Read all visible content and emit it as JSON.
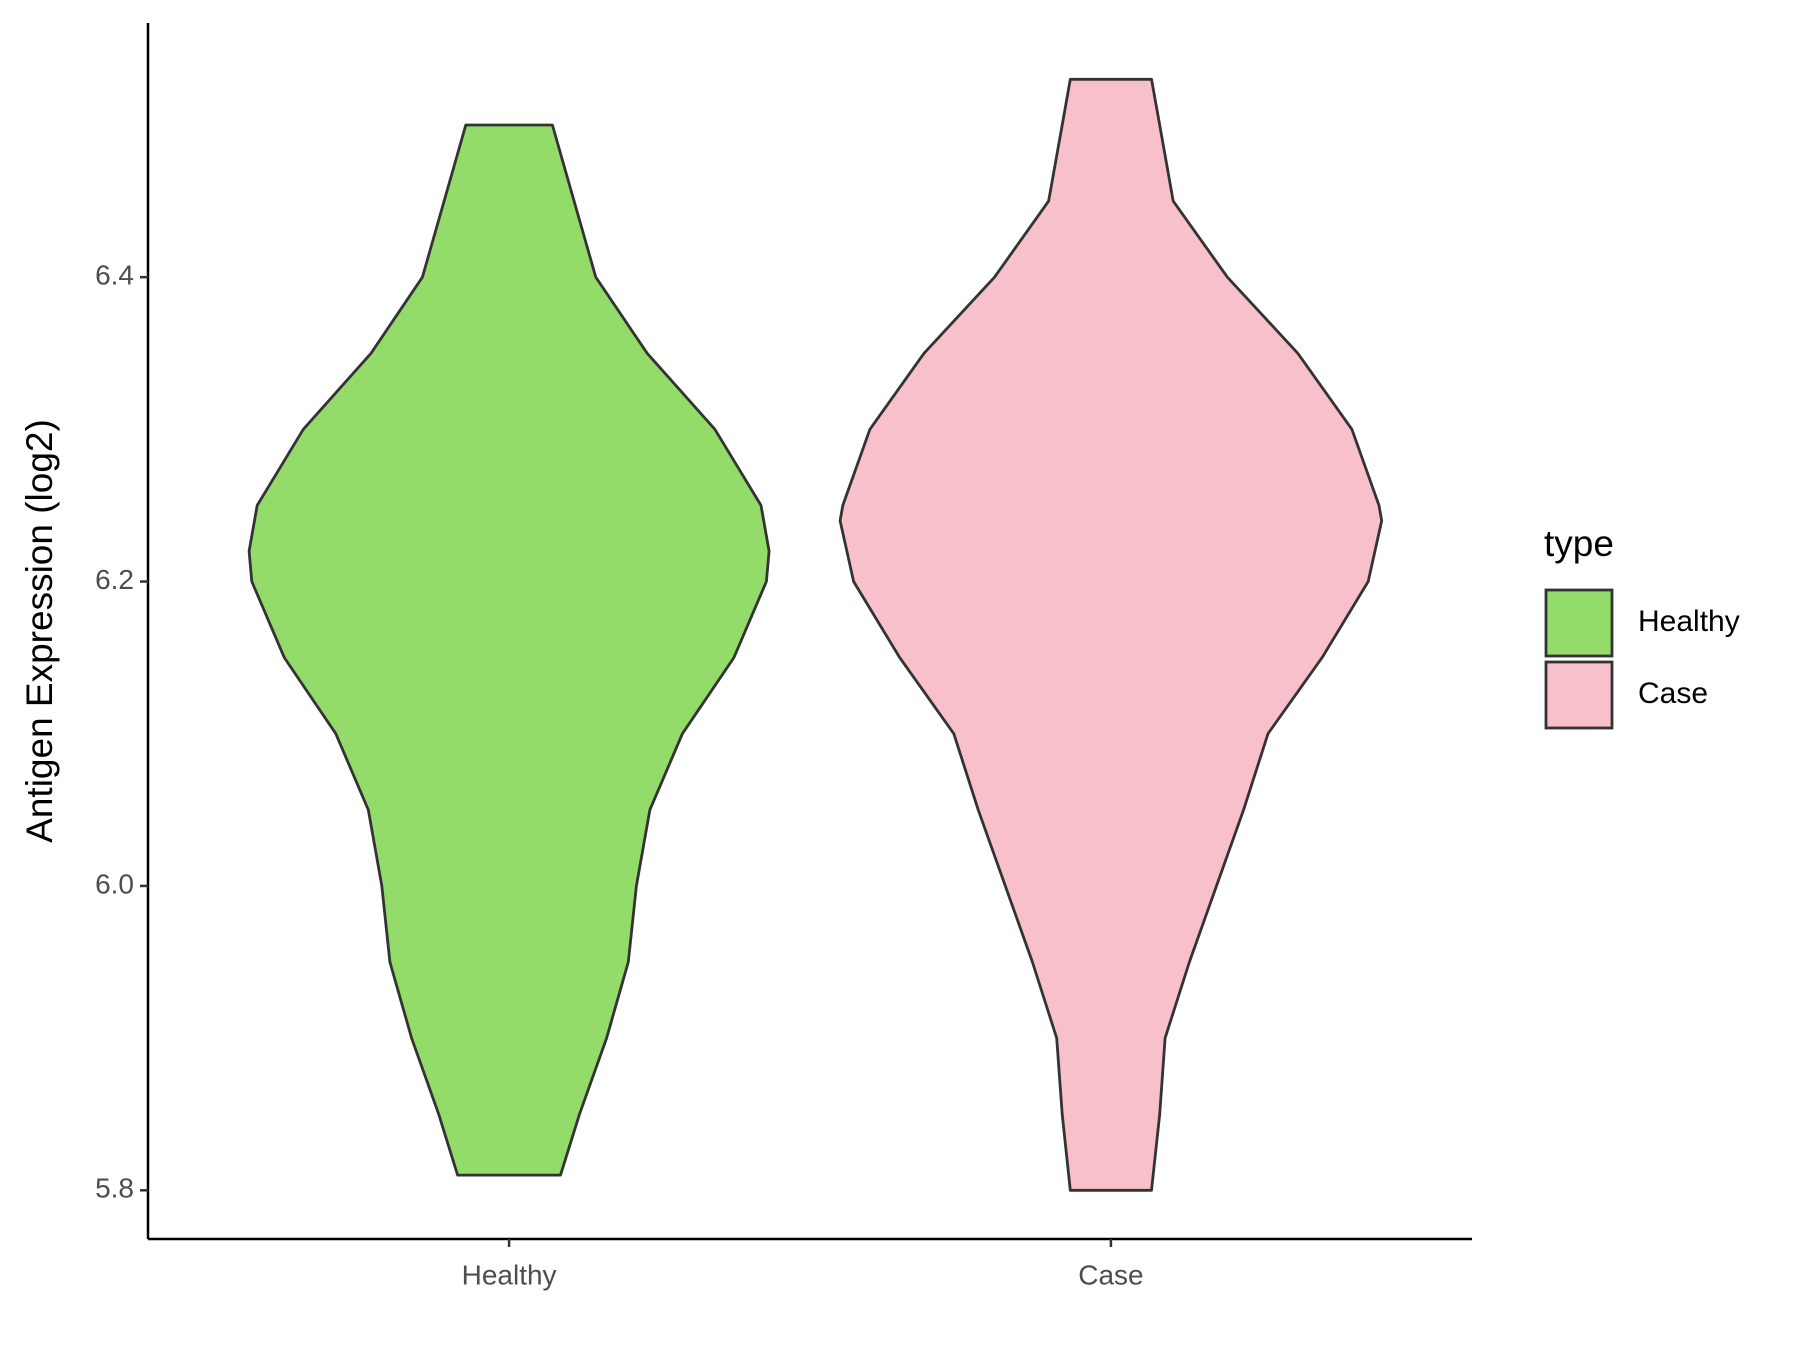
{
  "chart_data": {
    "type": "violin",
    "y_label": "Antigen Expression (log2)",
    "categories": [
      "Healthy",
      "Case"
    ],
    "legend_title": "type",
    "legend_position": "right",
    "series": [
      {
        "name": "Healthy",
        "color": "#93dc6a",
        "y": [
          5.81,
          5.85,
          5.9,
          5.95,
          6.0,
          6.05,
          6.1,
          6.15,
          6.2,
          6.22,
          6.25,
          6.3,
          6.35,
          6.4,
          6.45,
          6.5
        ],
        "width": [
          0.19,
          0.26,
          0.36,
          0.44,
          0.47,
          0.52,
          0.64,
          0.83,
          0.95,
          0.96,
          0.93,
          0.76,
          0.51,
          0.32,
          0.24,
          0.16
        ]
      },
      {
        "name": "Case",
        "color": "#f7c0cb",
        "y": [
          5.8,
          5.85,
          5.9,
          5.95,
          6.0,
          6.05,
          6.1,
          6.15,
          6.2,
          6.24,
          6.25,
          6.3,
          6.35,
          6.4,
          6.45,
          6.5,
          6.53
        ],
        "width": [
          0.15,
          0.18,
          0.2,
          0.29,
          0.39,
          0.49,
          0.58,
          0.78,
          0.95,
          1.0,
          0.99,
          0.89,
          0.69,
          0.43,
          0.23,
          0.18,
          0.15
        ]
      }
    ],
    "ylim": [
      5.768,
      6.567
    ],
    "yticks": [
      {
        "value": 5.8,
        "label": "5.8"
      },
      {
        "value": 6.0,
        "label": "6.0"
      },
      {
        "value": 6.2,
        "label": "6.2"
      },
      {
        "value": 6.4,
        "label": "6.4"
      }
    ],
    "grid": false
  }
}
